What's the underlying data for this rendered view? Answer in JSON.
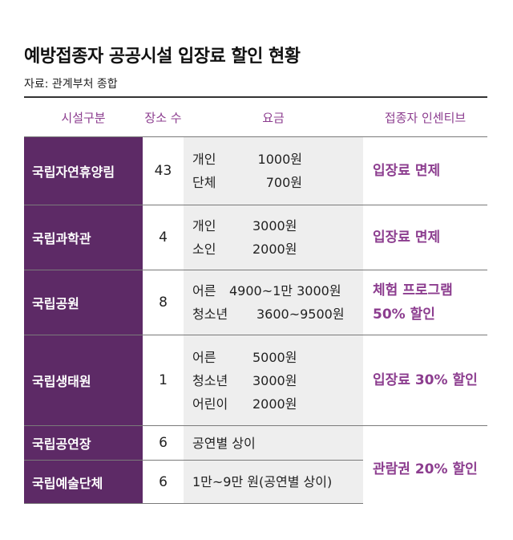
{
  "title": "예방접종자 공공시설 입장료 할인 현황",
  "source": "자료: 관계부처 종합",
  "headers": {
    "facility": "시설구분",
    "count": "장소 수",
    "fee": "요금",
    "incentive": "접종자 인센티브"
  },
  "rows": [
    {
      "facility": "국립자연휴양림",
      "count": "43",
      "fees": [
        {
          "label": "개인",
          "amount": "1000원"
        },
        {
          "label": "단체",
          "amount": "700원"
        }
      ],
      "incentive": "입장료 면제"
    },
    {
      "facility": "국립과학관",
      "count": "4",
      "fees": [
        {
          "label": "개인",
          "amount": "3000원"
        },
        {
          "label": "소인",
          "amount": "2000원"
        }
      ],
      "incentive": "입장료 면제"
    },
    {
      "facility": "국립공원",
      "count": "8",
      "fees": [
        {
          "label": "어른",
          "amount": "4900~1만 3000원"
        },
        {
          "label": "청소년",
          "amount": "3600~9500원"
        }
      ],
      "incentive_lines": [
        "체험 프로그램",
        "50% 할인"
      ]
    },
    {
      "facility": "국립생태원",
      "count": "1",
      "fees": [
        {
          "label": "어른",
          "amount": "5000원"
        },
        {
          "label": "청소년",
          "amount": "3000원"
        },
        {
          "label": "어린이",
          "amount": "2000원"
        }
      ],
      "incentive": "입장료 30% 할인"
    },
    {
      "facility": "국립공연장",
      "count": "6",
      "fee_text": "공연별 상이"
    },
    {
      "facility": "국립예술단체",
      "count": "6",
      "fee_text": "1만~9만 원(공연별 상이)"
    }
  ],
  "merged_incentive": "관람권 20% 할인",
  "colors": {
    "accent": "#8c3d8f",
    "facility_bg": "#5d2a66",
    "fee_bg": "#eeeeee"
  }
}
